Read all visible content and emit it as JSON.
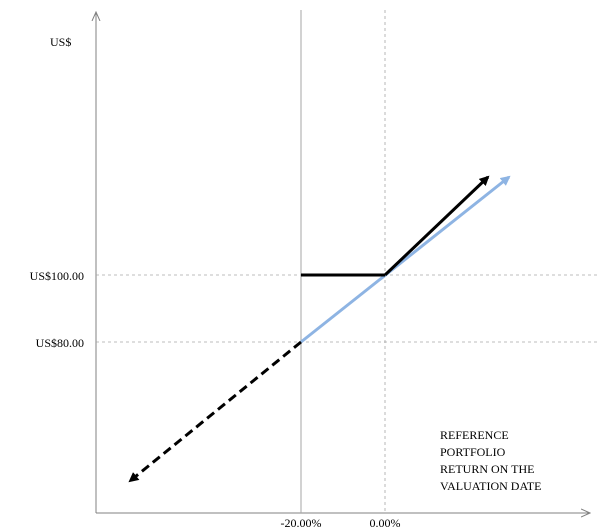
{
  "y_axis_label": "US$",
  "y_ticks": [
    {
      "label": "US$100.00",
      "value": 100
    },
    {
      "label": "US$80.00",
      "value": 80
    }
  ],
  "x_ticks": [
    {
      "label": "-20.00%",
      "value": -20
    },
    {
      "label": "0.00%",
      "value": 0
    }
  ],
  "x_axis_label": [
    "REFERENCE",
    "PORTFOLIO",
    "RETURN ON THE",
    "VALUATION DATE"
  ],
  "colors": {
    "note_line": "#000000",
    "portfolio_line": "#8eb4e3",
    "grid": "#a6a6a6",
    "axis": "#808080"
  }
}
